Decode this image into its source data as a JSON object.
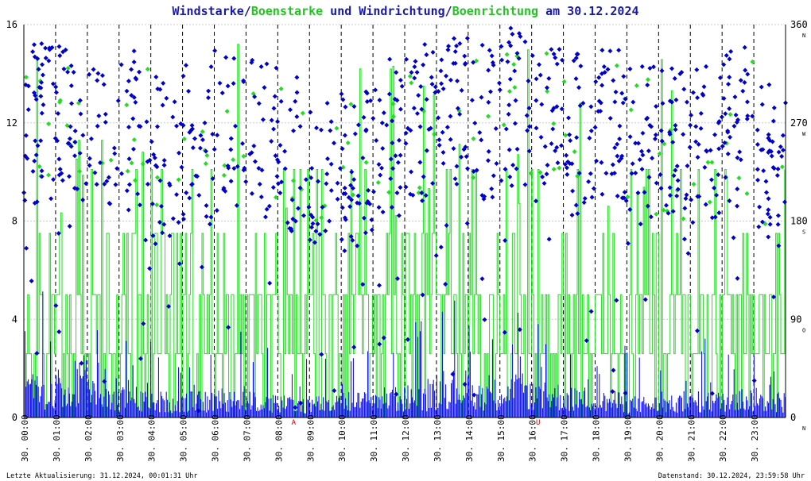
{
  "title": {
    "part1": "Windstarke",
    "slash1": "/",
    "part2": "Boenstarke",
    "part3": " und ",
    "part4": "Windrichtung",
    "slash2": "/",
    "part5": "Boenrichtung",
    "part6": " am 30.12.2024"
  },
  "footer": {
    "left": "Letzte Aktualisierung: 31.12.2024, 00:01:31 Uhr",
    "right": "Datenstand: 30.12.2024, 23:59:58 Uhr"
  },
  "markers": [
    {
      "text": "A",
      "hour": 8.5
    },
    {
      "text": "U",
      "hour": 16.2
    }
  ],
  "colors": {
    "title_blue": "#1a1aa8",
    "title_green": "#22c422",
    "wind": "#0000ee",
    "gust": "#22dd22",
    "direction": "#0000cc",
    "gust_direction": "#22dd22",
    "marker": "#cc0000",
    "grid": "#cccccc",
    "hour_line": "#000000",
    "text": "#000000"
  },
  "chart_data": {
    "type": "line",
    "x_range_hours": [
      0,
      24
    ],
    "x_tick_labels": [
      "30. 00:00",
      "30. 01:00",
      "30. 02:00",
      "30. 03:00",
      "30. 04:00",
      "30. 05:00",
      "30. 06:00",
      "30. 07:00",
      "30. 08:00",
      "30. 09:00",
      "30. 10:00",
      "30. 11:00",
      "30. 12:00",
      "30. 13:00",
      "30. 14:00",
      "30. 15:00",
      "30. 16:00",
      "30. 17:00",
      "30. 18:00",
      "30. 19:00",
      "30. 20:00",
      "30. 21:00",
      "30. 22:00",
      "30. 23:00"
    ],
    "y_left": {
      "min": 0,
      "max": 16,
      "ticks": [
        "0",
        "4",
        "8",
        "12",
        "16"
      ]
    },
    "y_right": {
      "min": 0,
      "max": 360,
      "ticks": [
        "0",
        "90",
        "180",
        "270",
        "360"
      ],
      "compass": [
        "N",
        "O",
        "S",
        "W",
        "N"
      ]
    },
    "grid": true,
    "gust_levels": [
      2.6,
      5.0,
      7.5,
      10.1
    ],
    "series": [
      {
        "name": "Windstarke",
        "style": "bars"
      },
      {
        "name": "Boenstarke",
        "style": "step-line"
      },
      {
        "name": "Windrichtung",
        "style": "diamond-scatter"
      },
      {
        "name": "Boenrichtung",
        "style": "diamond-scatter"
      }
    ],
    "hourly_wind": {
      "mean_speed": [
        1.0,
        1.3,
        0.9,
        0.7,
        0.6,
        0.6,
        0.7,
        0.6,
        0.5,
        0.5,
        0.6,
        0.7,
        0.8,
        1.1,
        0.9,
        1.0,
        0.8,
        0.7,
        0.6,
        0.5,
        0.5,
        0.6,
        0.7,
        0.6
      ],
      "max_speed": [
        5.3,
        4.8,
        4.6,
        3.4,
        3.0,
        2.9,
        3.6,
        3.0,
        2.7,
        2.8,
        3.2,
        3.4,
        4.1,
        4.9,
        4.3,
        4.6,
        3.9,
        3.6,
        3.2,
        2.9,
        2.8,
        3.3,
        3.8,
        3.2
      ]
    },
    "hourly_direction_deg": [
      270,
      265,
      260,
      262,
      240,
      255,
      262,
      255,
      245,
      215,
      225,
      255,
      270,
      285,
      275,
      285,
      270,
      260,
      270,
      250,
      245,
      250,
      265,
      230
    ]
  }
}
